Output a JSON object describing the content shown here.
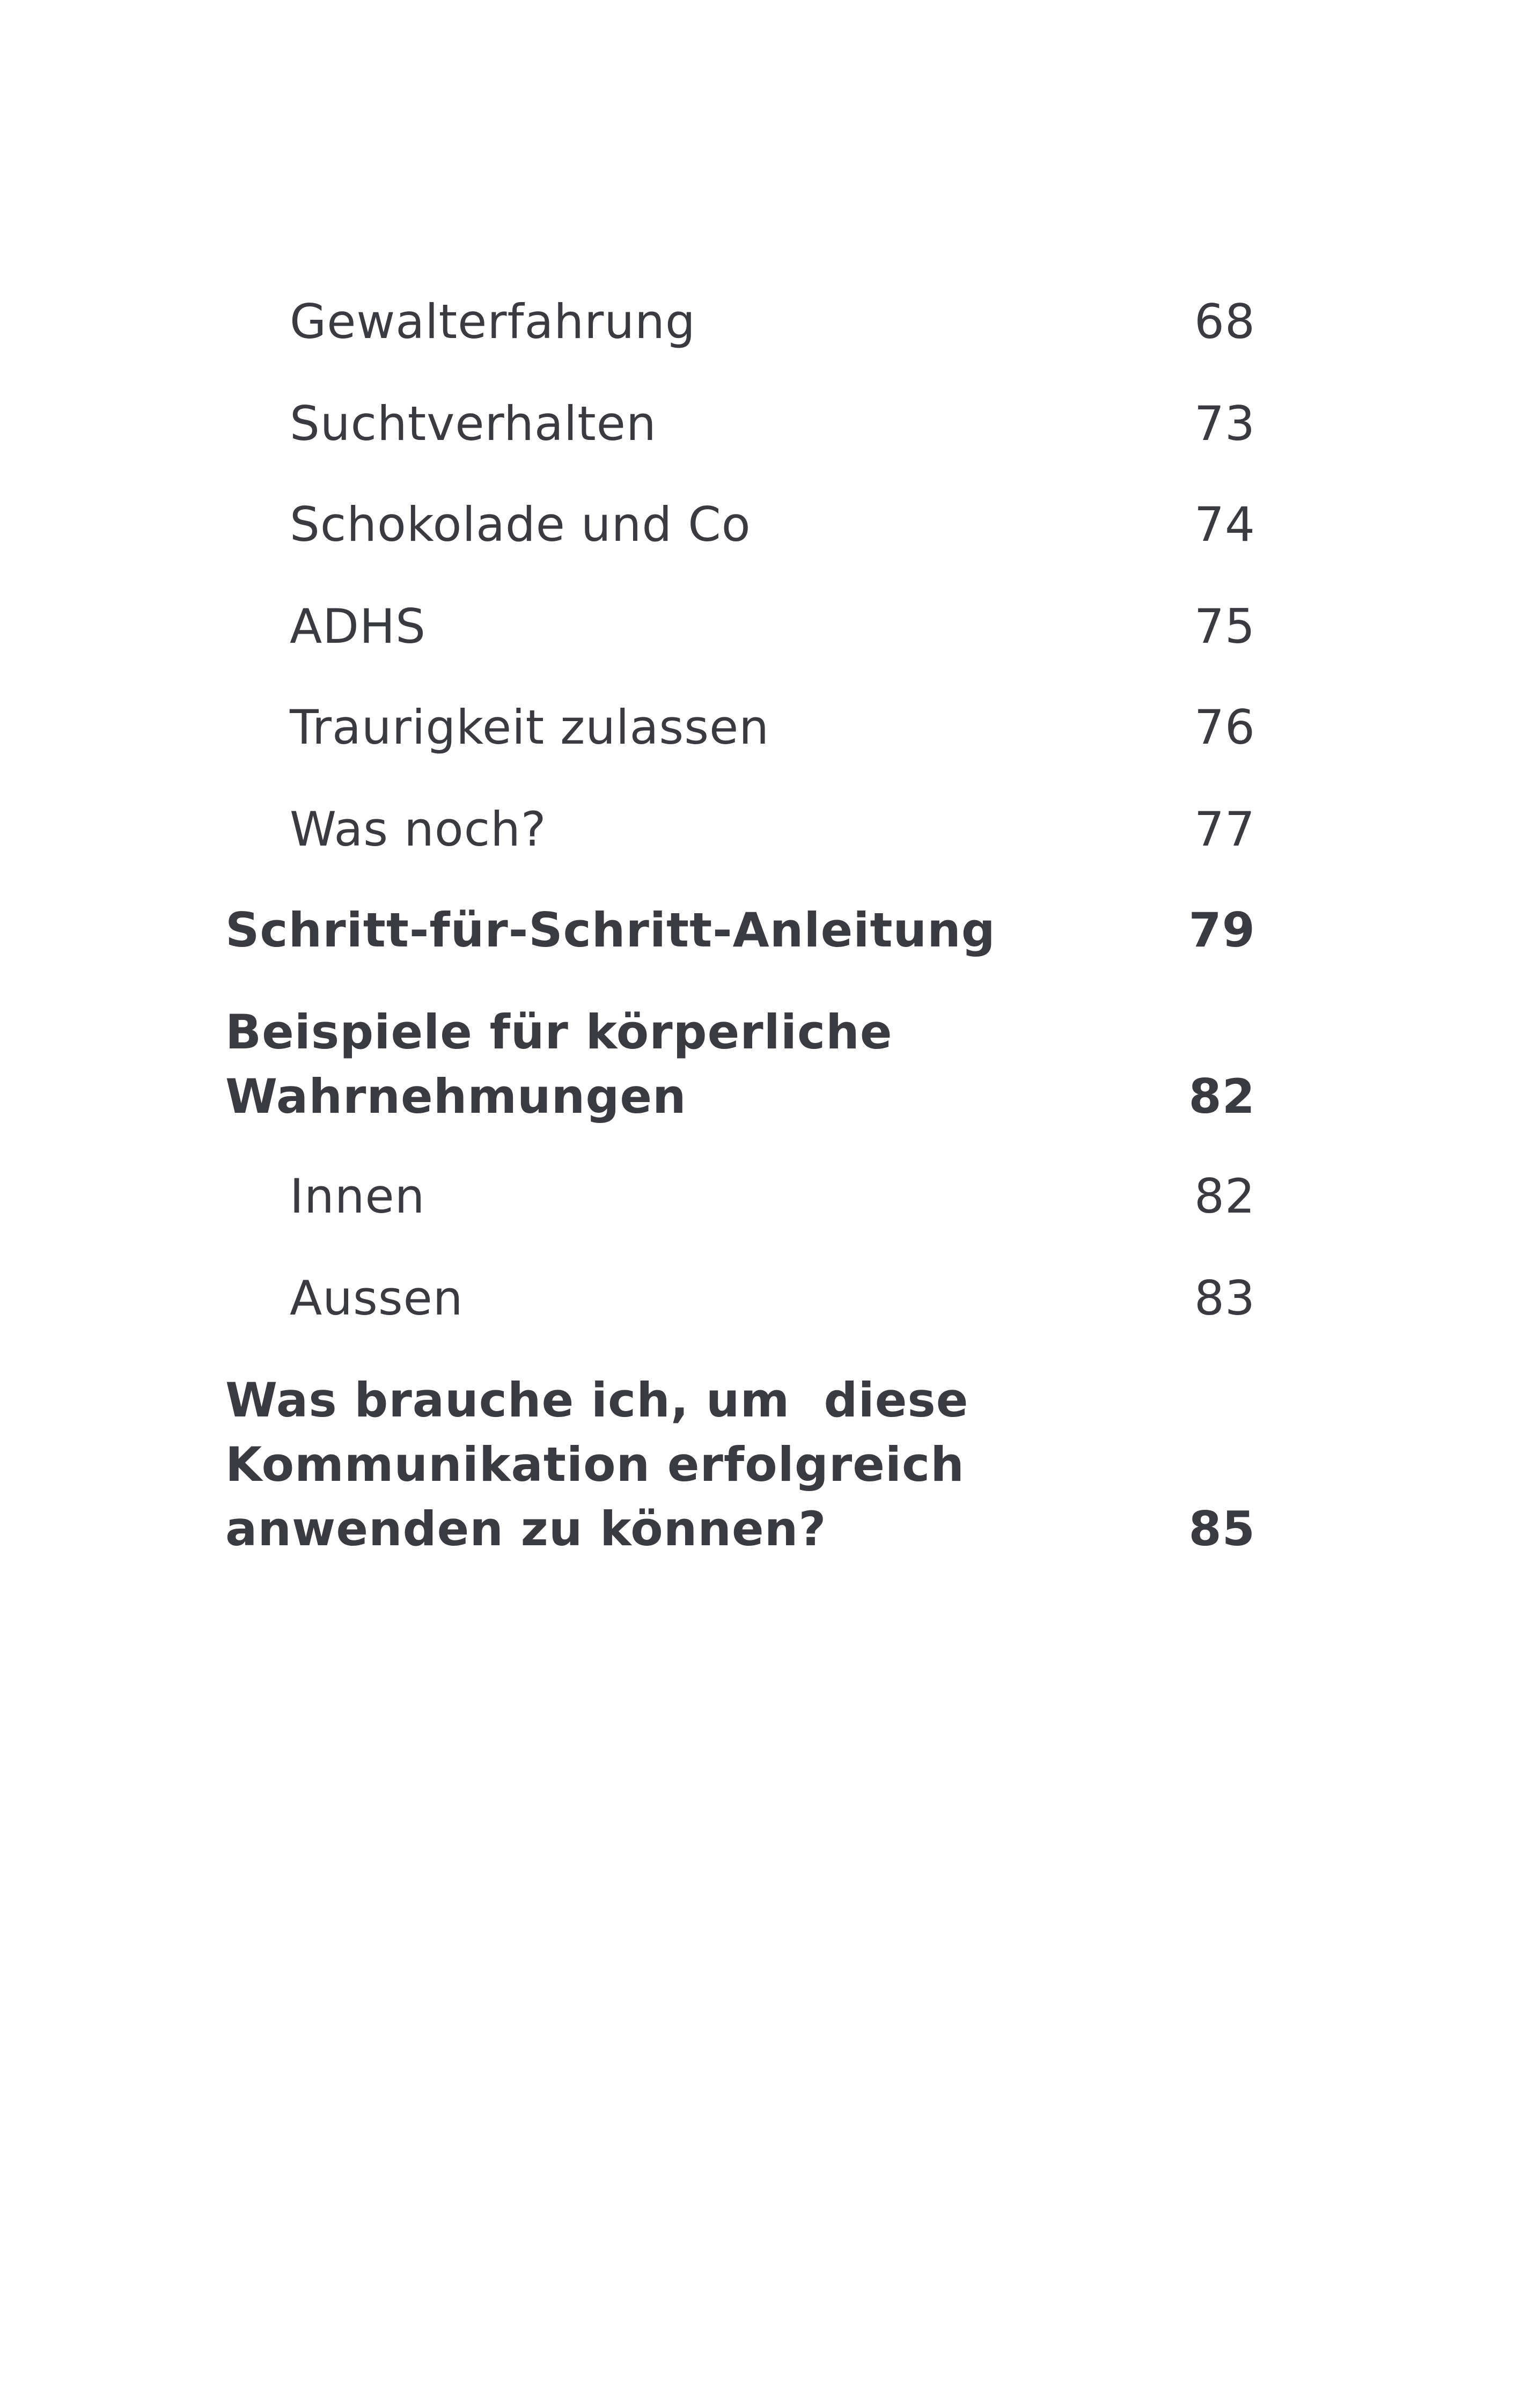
{
  "entries": [
    {
      "title": "Gewalterfahrung",
      "page": "68",
      "level": "sub"
    },
    {
      "title": "Suchtverhalten",
      "page": "73",
      "level": "sub"
    },
    {
      "title": "Schokolade und Co",
      "page": "74",
      "level": "sub"
    },
    {
      "title": "ADHS",
      "page": "75",
      "level": "sub"
    },
    {
      "title": "Traurigkeit zulassen",
      "page": "76",
      "level": "sub"
    },
    {
      "title": "Was noch?",
      "page": "77",
      "level": "sub"
    },
    {
      "title": "Schritt-für-Schritt-Anleitung",
      "page": "79",
      "level": "main"
    },
    {
      "title": "Beispiele für körperliche\nWahrnehmungen",
      "page": "82",
      "level": "main"
    },
    {
      "title": "Innen",
      "page": "82",
      "level": "sub"
    },
    {
      "title": "Aussen",
      "page": "83",
      "level": "sub"
    },
    {
      "title": "Was brauche ich, um  diese\nKommunikation erfolgreich\nanwenden zu können?",
      "page": "85",
      "level": "main"
    }
  ]
}
